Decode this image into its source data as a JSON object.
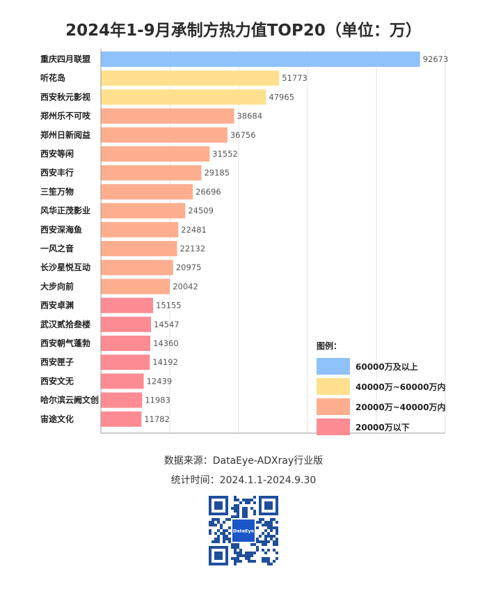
{
  "title": "2024年1-9月承制方热力值TOP20（单位：万）",
  "chart_data": {
    "type": "bar",
    "orientation": "horizontal",
    "title": "2024年1-9月承制方热力值TOP20（单位：万）",
    "unit": "万",
    "categories": [
      "重庆四月联盟",
      "听花岛",
      "西安秋元影视",
      "郑州乐不可吱",
      "郑州日新阅益",
      "西安等闲",
      "西安丰行",
      "三笙万物",
      "风华正茂影业",
      "西安深海鱼",
      "一风之音",
      "长沙星悦互动",
      "大步向前",
      "西安卓渊",
      "武汉贰拾叁楼",
      "西安朝气蓬勃",
      "西安匣子",
      "西安文无",
      "哈尔滨云阙文创",
      "宙途文化"
    ],
    "values": [
      92673,
      51773,
      47965,
      38684,
      36756,
      31552,
      29185,
      26696,
      24509,
      22481,
      22132,
      20975,
      20042,
      15155,
      14547,
      14360,
      14192,
      12439,
      11983,
      11782
    ],
    "xlim": [
      0,
      100000
    ],
    "grid": true,
    "data_labels": true,
    "legend_position": "bottom-right"
  },
  "legend": {
    "title": "图例：",
    "items": [
      {
        "label": "60000万及以上",
        "color": "#8fc1fb",
        "min": 60000
      },
      {
        "label": "40000万~60000万内",
        "color": "#fee08f",
        "min": 40000
      },
      {
        "label": "20000万~40000万内",
        "color": "#fdae8e",
        "min": 20000
      },
      {
        "label": "20000万以下",
        "color": "#fd8b93",
        "min": 0
      }
    ]
  },
  "footer": {
    "source": "数据来源：DataEye-ADXray行业版",
    "period": "统计时间：2024.1.1-2024.9.30"
  },
  "qr": {
    "logo_text": "DataEye"
  }
}
